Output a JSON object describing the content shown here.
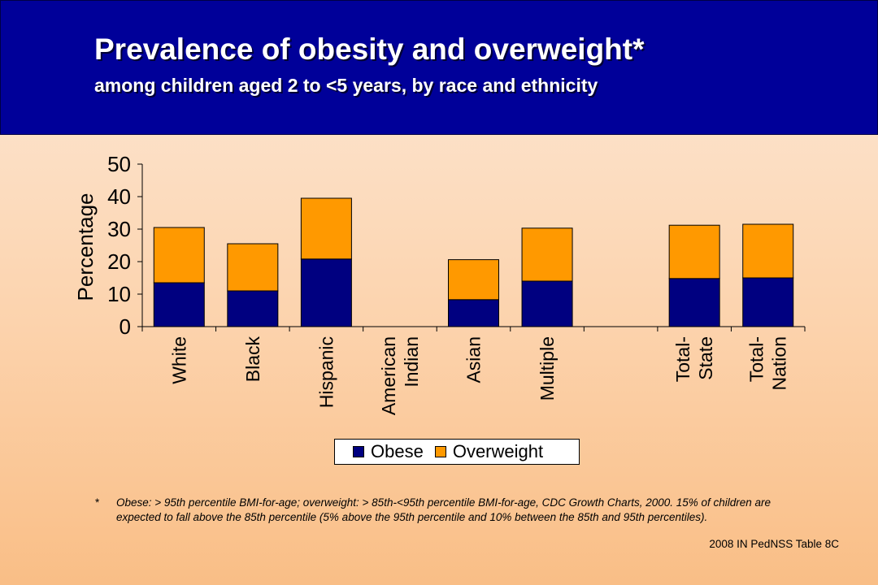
{
  "header": {
    "title": "Prevalence of obesity and overweight*",
    "subtitle": "among children aged 2 to <5 years, by race and ethnicity"
  },
  "chart_data": {
    "type": "bar",
    "stacked": true,
    "categories": [
      "White",
      "Black",
      "Hispanic",
      "American Indian",
      "Asian",
      "Multiple",
      "",
      "Total-State",
      "Total-Nation"
    ],
    "category_label_lines": [
      [
        "White"
      ],
      [
        "Black"
      ],
      [
        "Hispanic"
      ],
      [
        "American",
        "Indian"
      ],
      [
        "Asian"
      ],
      [
        "Multiple"
      ],
      [],
      [
        "Total-",
        "State"
      ],
      [
        "Total-",
        "Nation"
      ]
    ],
    "series": [
      {
        "name": "Obese",
        "color": "#000080",
        "values": [
          13.5,
          11,
          20.8,
          null,
          8.3,
          14,
          null,
          14.8,
          15
        ]
      },
      {
        "name": "Overweight",
        "color": "#ff9900",
        "values": [
          17,
          14.5,
          18.7,
          null,
          12.3,
          16.3,
          null,
          16.4,
          16.5
        ]
      }
    ],
    "ylabel": "Percentage",
    "xlabel": "",
    "ylim": [
      0,
      50
    ],
    "yticks": [
      0,
      10,
      20,
      30,
      40,
      50
    ],
    "grid": false,
    "legend_position": "bottom"
  },
  "legend": {
    "obese_label": "Obese",
    "overweight_label": "Overweight"
  },
  "footnote": {
    "marker": "*",
    "text": "Obese: > 95th percentile BMI-for-age; overweight: > 85th-<95th percentile BMI-for-age, CDC Growth Charts, 2000. 15% of children are expected to fall above the 85th percentile (5% above the 95th percentile and 10% between the 85th and 95th percentiles)."
  },
  "source": "2008 IN PedNSS Table 8C",
  "colors": {
    "header_bg": "#000099",
    "obese": "#000080",
    "overweight": "#ff9900"
  }
}
